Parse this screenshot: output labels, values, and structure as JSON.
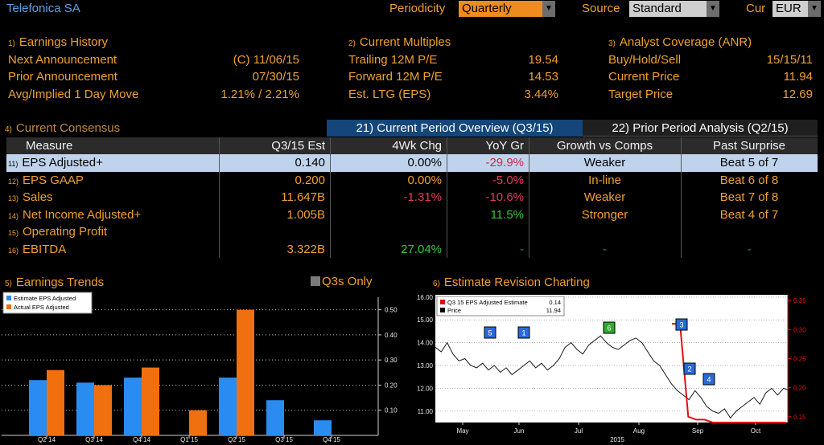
{
  "header": {
    "title": "Telefonica SA",
    "periodicity_label": "Periodicity",
    "periodicity_value": "Quarterly",
    "source_label": "Source",
    "source_value": "Standard",
    "cur_label": "Cur",
    "cur_value": "EUR"
  },
  "earnings_history": {
    "num": "1)",
    "title": "Earnings History",
    "rows": [
      {
        "label": "Next Announcement",
        "value": "(C)  11/06/15"
      },
      {
        "label": "Prior Announcement",
        "value": "07/30/15"
      },
      {
        "label": "Avg/Implied 1 Day Move",
        "value": "1.21% / 2.21%"
      }
    ]
  },
  "current_multiples": {
    "num": "2)",
    "title": "Current Multiples",
    "rows": [
      {
        "label": "Trailing 12M P/E",
        "value": "19.54"
      },
      {
        "label": "Forward 12M P/E",
        "value": "14.53"
      },
      {
        "label": "Est. LTG (EPS)",
        "value": "3.44%"
      }
    ]
  },
  "analyst_coverage": {
    "num": "3)",
    "title": "Analyst Coverage (ANR)",
    "rows": [
      {
        "label": "Buy/Hold/Sell",
        "value": "15/15/11"
      },
      {
        "label": "Current Price",
        "value": "11.94"
      },
      {
        "label": "Target Price",
        "value": "12.69"
      }
    ]
  },
  "consensus": {
    "num": "4)",
    "title": "Current Consensus",
    "tab_current": "21) Current Period Overview (Q3/15)",
    "tab_prior": "22) Prior Period Analysis (Q2/15)",
    "columns": [
      "Measure",
      "Q3/15 Est",
      "4Wk Chg",
      "YoY Gr",
      "Growth vs Comps",
      "Past Surprise"
    ],
    "rows": [
      {
        "num": "11)",
        "measure": "EPS Adjusted+",
        "est": "0.140",
        "chg": "0.00%",
        "yoy": "-29.9%",
        "growth": "Weaker",
        "surprise": "Beat 5 of 7"
      },
      {
        "num": "12)",
        "measure": "EPS GAAP",
        "est": "0.200",
        "chg": "0.00%",
        "yoy": "-5.0%",
        "growth": "In-line",
        "surprise": "Beat 6 of 8"
      },
      {
        "num": "13)",
        "measure": "Sales",
        "est": "11.647B",
        "chg": "-1.31%",
        "yoy": "-10.6%",
        "growth": "Weaker",
        "surprise": "Beat 7 of 8"
      },
      {
        "num": "14)",
        "measure": "Net Income Adjusted+",
        "est": "1.005B",
        "chg": "",
        "yoy": "11.5%",
        "growth": "Stronger",
        "surprise": "Beat 4 of 7"
      },
      {
        "num": "15)",
        "measure": "Operating Profit",
        "est": "",
        "chg": "",
        "yoy": "",
        "growth": "",
        "surprise": ""
      },
      {
        "num": "16)",
        "measure": "EBITDA",
        "est": "3.322B",
        "chg": "27.04%",
        "yoy": "-",
        "growth": "-",
        "surprise": "-"
      }
    ]
  },
  "earnings_trends": {
    "num": "5)",
    "title": "Earnings Trends",
    "q3s_only_label": "Q3s Only",
    "colors": {
      "estimate": "#2a8cf0",
      "actual": "#f07010"
    }
  },
  "estimate_revision": {
    "num": "6)",
    "title": "Estimate Revision Charting",
    "legend_1": "Q3 15 EPS Adjusted Estimate",
    "legend_1_val": "0.14",
    "legend_2": "Price",
    "legend_2_val": "11.94",
    "year_label": "2015",
    "colors": {
      "estimate": "#e01010",
      "price": "#ffffff"
    }
  },
  "chart_data": [
    {
      "type": "bar",
      "title": "Earnings Trends",
      "categories": [
        "Q2 14",
        "Q3 14",
        "Q4 14",
        "Q1 15",
        "Q2 15",
        "Q3 15",
        "Q4 15"
      ],
      "series": [
        {
          "name": "Estimate EPS Adjusted",
          "values": [
            0.22,
            0.21,
            0.23,
            null,
            0.23,
            0.14,
            0.06
          ]
        },
        {
          "name": "Actual EPS Adjusted",
          "values": [
            0.26,
            0.2,
            0.27,
            0.1,
            0.5,
            null,
            null
          ]
        }
      ],
      "ylim": [
        0,
        0.55
      ],
      "yticks": [
        "0.10",
        "0.20",
        "0.30",
        "0.40",
        "0.50"
      ],
      "legend": "top-left"
    },
    {
      "type": "line",
      "title": "Estimate Revision Charting",
      "x_labels": [
        "May",
        "Jun",
        "Jul",
        "Aug",
        "Sep",
        "Oct"
      ],
      "y_left_ticks": [
        "11.00",
        "12.00",
        "13.00",
        "14.00",
        "15.00",
        "16.00"
      ],
      "y_right_ticks": [
        "0.15",
        "0.20",
        "0.25",
        "0.30",
        "0.35"
      ],
      "ylim_left": [
        10.5,
        16.1
      ],
      "ylim_right": [
        0.14,
        0.36
      ],
      "series": [
        {
          "name": "Price",
          "values": [
            13.8,
            13.6,
            14.0,
            13.5,
            13.2,
            13.3,
            13.0,
            12.9,
            13.1,
            12.8,
            13.0,
            12.7,
            12.9,
            12.6,
            12.8,
            13.0,
            13.2,
            12.9,
            13.1,
            12.8,
            13.0,
            13.3,
            13.8,
            14.0,
            13.7,
            13.5,
            13.9,
            14.1,
            14.3,
            14.0,
            13.8,
            13.7,
            13.9,
            14.1,
            14.2,
            14.0,
            13.6,
            13.2,
            13.0,
            12.6,
            12.2,
            11.9,
            11.7,
            11.5,
            11.9,
            11.6,
            11.2,
            11.0,
            10.9,
            11.1,
            10.7,
            11.0,
            11.2,
            11.4,
            11.6,
            11.3,
            11.8,
            12.0,
            11.7,
            12.0,
            11.9
          ]
        },
        {
          "name": "Q3 15 EPS Adjusted Estimate",
          "values": [
            0.31,
            0.31,
            0.15,
            0.145,
            0.145,
            0.14,
            0.14,
            0.14,
            0.14,
            0.14,
            0.14,
            0.14,
            0.14,
            0.14,
            0.14
          ]
        }
      ],
      "markers": [
        "5",
        "1",
        "6",
        "3",
        "2",
        "4"
      ],
      "marker_colors": [
        "#2a6ad8",
        "#2a6ad8",
        "#2ea82e",
        "#2a6ad8",
        "#2a6ad8",
        "#2a6ad8"
      ]
    }
  ]
}
